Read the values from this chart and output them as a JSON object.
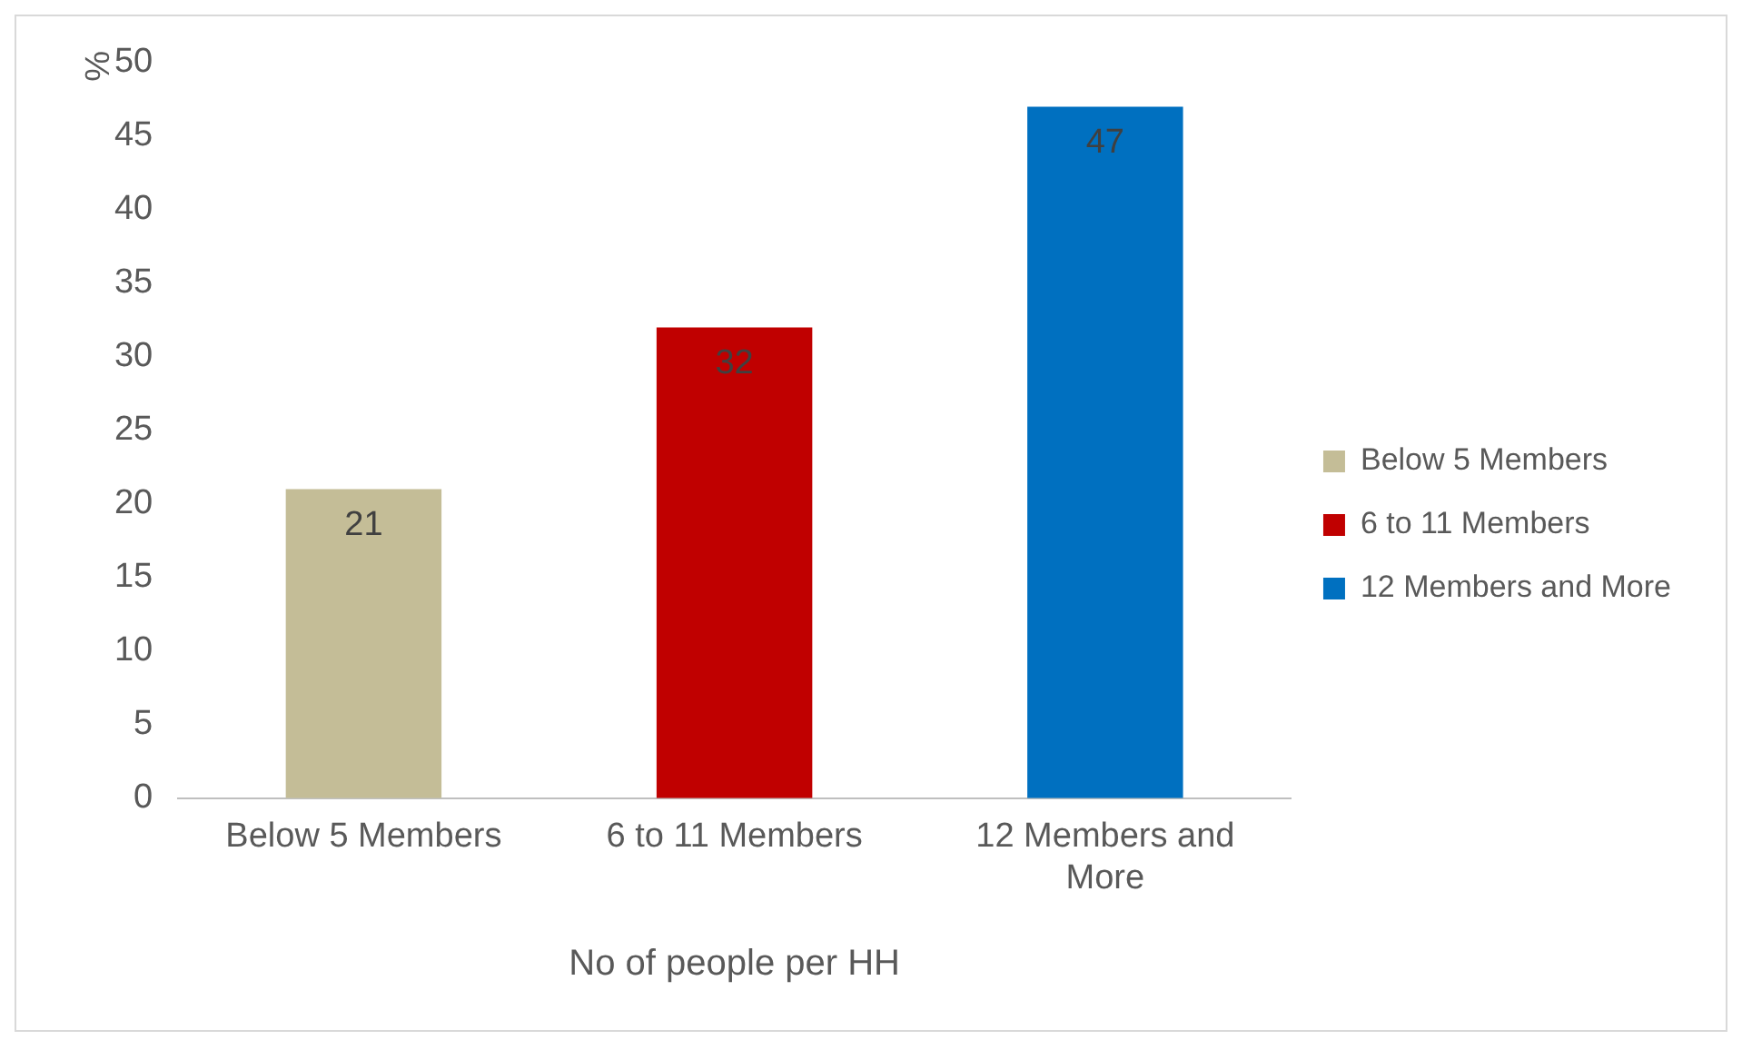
{
  "chart_data": {
    "type": "bar",
    "xlabel": "No of people per HH",
    "ylabel": "%",
    "categories": [
      "Below 5 Members",
      "6 to 11 Members",
      "12 Members and More"
    ],
    "series": [
      {
        "name": "Below 5 Members",
        "color": "#c4bd97",
        "values": [
          21,
          null,
          null
        ]
      },
      {
        "name": "6 to 11 Members",
        "color": "#c00000",
        "values": [
          null,
          32,
          null
        ]
      },
      {
        "name": "12 Members and More",
        "color": "#0070c0",
        "values": [
          null,
          null,
          47
        ]
      }
    ],
    "ylim": [
      0,
      50
    ],
    "yticks": [
      0,
      5,
      10,
      15,
      20,
      25,
      30,
      35,
      40,
      45,
      50
    ],
    "grid": false,
    "legend": "right",
    "data_labels": true
  }
}
